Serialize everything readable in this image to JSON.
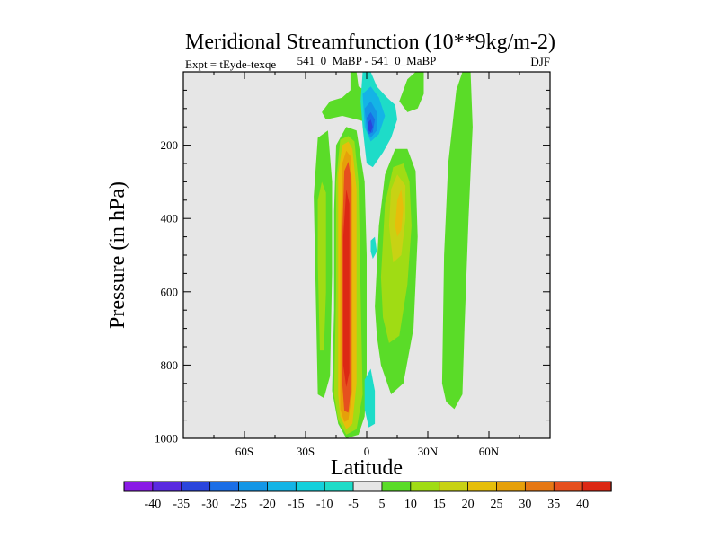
{
  "chart_data": {
    "type": "heatmap",
    "title": "Meridional Streamfunction (10**9kg/m-2)",
    "left_string": "Expt = tEyde-texqe",
    "center_string": "541_0_MaBP - 541_0_MaBP",
    "right_string": "DJF",
    "xlabel": "Latitude",
    "ylabel": "Pressure (in hPa)",
    "xlim": [
      -90,
      90
    ],
    "ylim": [
      0,
      1000
    ],
    "y_reversed": true,
    "x_ticks": [
      {
        "value": -60,
        "label": "60S"
      },
      {
        "value": -30,
        "label": "30S"
      },
      {
        "value": 0,
        "label": "0"
      },
      {
        "value": 30,
        "label": "30N"
      },
      {
        "value": 60,
        "label": "60N"
      }
    ],
    "y_ticks": [
      {
        "value": 200,
        "label": "200"
      },
      {
        "value": 400,
        "label": "400"
      },
      {
        "value": 600,
        "label": "600"
      },
      {
        "value": 800,
        "label": "800"
      },
      {
        "value": 1000,
        "label": "1000"
      }
    ],
    "background_color": "#e6e6e6",
    "colorbar": {
      "levels": [
        -40,
        -35,
        -30,
        -25,
        -20,
        -15,
        -10,
        -5,
        5,
        10,
        15,
        20,
        25,
        30,
        35,
        40
      ],
      "labels": [
        "-40",
        "-35",
        "-30",
        "-25",
        "-20",
        "-15",
        "-10",
        "-5",
        "5",
        "10",
        "15",
        "20",
        "25",
        "30",
        "35",
        "40"
      ],
      "colors": [
        "#8a1be6",
        "#5a2ae0",
        "#2a45dc",
        "#1b6ee6",
        "#1496e6",
        "#14b4e6",
        "#14d0dc",
        "#1edcc8",
        "#e6e6e6",
        "#5adc28",
        "#a0dc14",
        "#c8d214",
        "#e6be0a",
        "#e6a00a",
        "#e67814",
        "#e6501e",
        "#dc2814"
      ]
    },
    "field": [
      {
        "name": "positive-cell-sh-outer",
        "level": 5,
        "color": "#5adc28",
        "points": [
          [
            -24,
            880
          ],
          [
            -25,
            600
          ],
          [
            -26,
            340
          ],
          [
            -24,
            180
          ],
          [
            -19,
            160
          ],
          [
            -17,
            300
          ],
          [
            -17,
            550
          ],
          [
            -18,
            830
          ],
          [
            -21,
            890
          ]
        ]
      },
      {
        "name": "positive-cell-sh-outer-core",
        "level": 10,
        "color": "#a0dc14",
        "points": [
          [
            -23,
            760
          ],
          [
            -24,
            520
          ],
          [
            -24,
            350
          ],
          [
            -22,
            300
          ],
          [
            -20,
            330
          ],
          [
            -20,
            600
          ],
          [
            -21,
            760
          ]
        ]
      },
      {
        "name": "main-cell-level-5",
        "level": 5,
        "color": "#5adc28",
        "points": [
          [
            -17,
            870
          ],
          [
            -16,
            650
          ],
          [
            -16,
            380
          ],
          [
            -15,
            200
          ],
          [
            -10,
            150
          ],
          [
            -5,
            160
          ],
          [
            -3,
            230
          ],
          [
            -1,
            300
          ],
          [
            0,
            500
          ],
          [
            0,
            820
          ],
          [
            -1,
            940
          ],
          [
            -4,
            990
          ],
          [
            -10,
            1000
          ],
          [
            -14,
            960
          ]
        ]
      },
      {
        "name": "main-cell-level-10",
        "level": 10,
        "color": "#a0dc14",
        "points": [
          [
            -16,
            880
          ],
          [
            -15,
            600
          ],
          [
            -15,
            300
          ],
          [
            -13,
            185
          ],
          [
            -9,
            175
          ],
          [
            -6,
            190
          ],
          [
            -4,
            300
          ],
          [
            -3,
            600
          ],
          [
            -2,
            880
          ],
          [
            -5,
            975
          ],
          [
            -10,
            990
          ],
          [
            -14,
            950
          ]
        ]
      },
      {
        "name": "main-cell-level-20",
        "level": 20,
        "color": "#e6be0a",
        "points": [
          [
            -14,
            880
          ],
          [
            -14,
            550
          ],
          [
            -14,
            280
          ],
          [
            -12,
            200
          ],
          [
            -9,
            190
          ],
          [
            -7,
            210
          ],
          [
            -5,
            320
          ],
          [
            -5,
            850
          ],
          [
            -7,
            960
          ],
          [
            -10,
            975
          ],
          [
            -13,
            940
          ]
        ]
      },
      {
        "name": "main-cell-level-30",
        "level": 30,
        "color": "#e6a00a",
        "points": [
          [
            -13,
            860
          ],
          [
            -13,
            500
          ],
          [
            -12,
            250
          ],
          [
            -10,
            215
          ],
          [
            -8,
            230
          ],
          [
            -7,
            320
          ],
          [
            -7,
            870
          ],
          [
            -9,
            950
          ],
          [
            -11,
            955
          ],
          [
            -13,
            920
          ]
        ]
      },
      {
        "name": "main-cell-level-35",
        "level": 35,
        "color": "#e6501e",
        "points": [
          [
            -12,
            850
          ],
          [
            -12,
            450
          ],
          [
            -11,
            270
          ],
          [
            -9,
            245
          ],
          [
            -8,
            280
          ],
          [
            -8,
            880
          ],
          [
            -9,
            930
          ],
          [
            -11,
            925
          ]
        ]
      },
      {
        "name": "main-cell-level-40",
        "level": 40,
        "color": "#dc2814",
        "points": [
          [
            -11.5,
            800
          ],
          [
            -11.5,
            450
          ],
          [
            -10,
            320
          ],
          [
            -8.5,
            360
          ],
          [
            -8.5,
            820
          ],
          [
            -10,
            860
          ]
        ]
      },
      {
        "name": "nh-cell-level-5",
        "level": 5,
        "color": "#5adc28",
        "points": [
          [
            4,
            640
          ],
          [
            6,
            420
          ],
          [
            9,
            280
          ],
          [
            14,
            210
          ],
          [
            20,
            210
          ],
          [
            24,
            270
          ],
          [
            25,
            450
          ],
          [
            23,
            700
          ],
          [
            18,
            850
          ],
          [
            12,
            880
          ],
          [
            7,
            800
          ],
          [
            5,
            720
          ]
        ]
      },
      {
        "name": "nh-cell-level-10",
        "level": 10,
        "color": "#a0dc14",
        "points": [
          [
            7,
            560
          ],
          [
            9,
            360
          ],
          [
            13,
            260
          ],
          [
            18,
            250
          ],
          [
            21,
            300
          ],
          [
            22,
            420
          ],
          [
            20,
            580
          ],
          [
            16,
            720
          ],
          [
            11,
            740
          ],
          [
            8,
            670
          ]
        ]
      },
      {
        "name": "nh-cell-level-20",
        "level": 20,
        "color": "#c8d214",
        "points": [
          [
            11,
            420
          ],
          [
            12,
            320
          ],
          [
            15,
            280
          ],
          [
            19,
            310
          ],
          [
            19,
            400
          ],
          [
            17,
            500
          ],
          [
            13,
            520
          ]
        ]
      },
      {
        "name": "nh-cell-level-25",
        "level": 25,
        "color": "#e6be0a",
        "points": [
          [
            14,
            420
          ],
          [
            15,
            350
          ],
          [
            17,
            320
          ],
          [
            18,
            370
          ],
          [
            17,
            430
          ],
          [
            15,
            450
          ]
        ]
      },
      {
        "name": "upper-positive-level-5",
        "level": 5,
        "color": "#5adc28",
        "points": [
          [
            -22,
            110
          ],
          [
            -18,
            80
          ],
          [
            -12,
            70
          ],
          [
            -8,
            50
          ],
          [
            -8,
            0
          ],
          [
            -5,
            0
          ],
          [
            -4,
            40
          ],
          [
            2,
            60
          ],
          [
            8,
            90
          ],
          [
            12,
            140
          ],
          [
            8,
            170
          ],
          [
            2,
            140
          ],
          [
            -5,
            130
          ],
          [
            -12,
            120
          ],
          [
            -20,
            130
          ]
        ]
      },
      {
        "name": "upper-right-positive-level-5",
        "level": 5,
        "color": "#5adc28",
        "points": [
          [
            16,
            80
          ],
          [
            20,
            20
          ],
          [
            24,
            0
          ],
          [
            28,
            0
          ],
          [
            28,
            60
          ],
          [
            25,
            100
          ],
          [
            20,
            110
          ]
        ]
      },
      {
        "name": "nh-outer-band-level-5",
        "level": 5,
        "color": "#5adc28",
        "points": [
          [
            37,
            850
          ],
          [
            38,
            500
          ],
          [
            40,
            250
          ],
          [
            44,
            50
          ],
          [
            47,
            0
          ],
          [
            51,
            0
          ],
          [
            52,
            150
          ],
          [
            50,
            400
          ],
          [
            48,
            700
          ],
          [
            47,
            880
          ],
          [
            43,
            920
          ],
          [
            39,
            900
          ]
        ]
      },
      {
        "name": "negative-region-level-minus5",
        "level": -5,
        "color": "#1edcc8",
        "points": [
          [
            -2,
            0
          ],
          [
            2,
            0
          ],
          [
            5,
            40
          ],
          [
            10,
            70
          ],
          [
            14,
            90
          ],
          [
            15,
            130
          ],
          [
            12,
            180
          ],
          [
            8,
            220
          ],
          [
            3,
            260
          ],
          [
            0,
            250
          ],
          [
            -1,
            200
          ],
          [
            -2,
            150
          ],
          [
            -3,
            80
          ]
        ]
      },
      {
        "name": "negative-region-level-minus10",
        "level": -10,
        "color": "#14b4e6",
        "points": [
          [
            -2,
            60
          ],
          [
            2,
            40
          ],
          [
            6,
            70
          ],
          [
            9,
            120
          ],
          [
            6,
            170
          ],
          [
            2,
            190
          ],
          [
            -1,
            150
          ]
        ]
      },
      {
        "name": "negative-region-level-minus20",
        "level": -20,
        "color": "#1496e6",
        "points": [
          [
            -1,
            100
          ],
          [
            2,
            80
          ],
          [
            5,
            110
          ],
          [
            5,
            160
          ],
          [
            2,
            180
          ],
          [
            0,
            160
          ]
        ]
      },
      {
        "name": "negative-region-level-minus30",
        "level": -30,
        "color": "#1b6ee6",
        "points": [
          [
            0,
            125
          ],
          [
            2,
            110
          ],
          [
            4,
            130
          ],
          [
            3,
            165
          ],
          [
            1,
            170
          ]
        ]
      },
      {
        "name": "negative-region-level-minus35",
        "level": -35,
        "color": "#2a45dc",
        "points": [
          [
            0.5,
            140
          ],
          [
            2,
            130
          ],
          [
            3,
            150
          ],
          [
            2,
            165
          ],
          [
            1,
            160
          ]
        ]
      },
      {
        "name": "negative-small-mid",
        "level": -5,
        "color": "#1edcc8",
        "points": [
          [
            2,
            460
          ],
          [
            4,
            450
          ],
          [
            5,
            490
          ],
          [
            3,
            510
          ],
          [
            2,
            490
          ]
        ]
      },
      {
        "name": "negative-near-surface",
        "level": -5,
        "color": "#1edcc8",
        "points": [
          [
            -1,
            840
          ],
          [
            2,
            810
          ],
          [
            4,
            870
          ],
          [
            4,
            960
          ],
          [
            1,
            970
          ],
          [
            -1,
            920
          ]
        ]
      }
    ]
  }
}
